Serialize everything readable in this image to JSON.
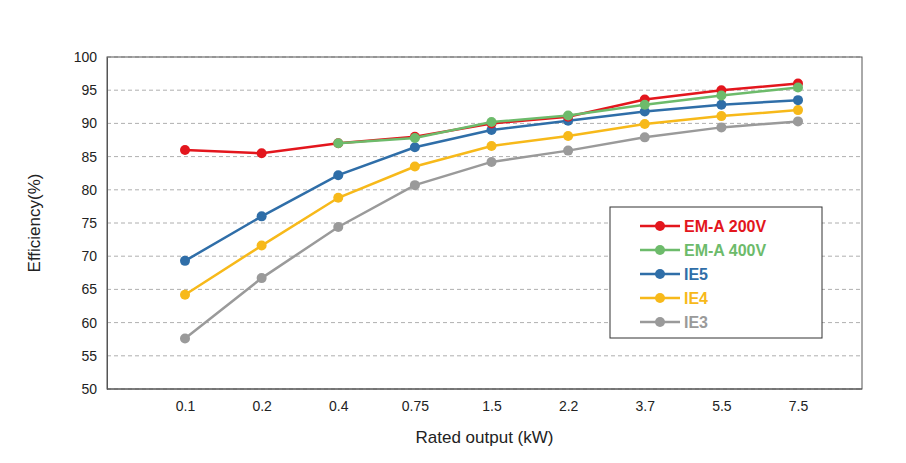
{
  "chart_data": {
    "type": "line",
    "x_label": "Rated output (kW)",
    "y_label": "Efficiency(%)",
    "categories": [
      "0.1",
      "0.2",
      "0.4",
      "0.75",
      "1.5",
      "2.2",
      "3.7",
      "5.5",
      "7.5"
    ],
    "series": [
      {
        "name": "EM-A 200V",
        "color": "#e3161d",
        "marker": "circle",
        "values": [
          86,
          85.5,
          87,
          88,
          90,
          91,
          93.6,
          95,
          96
        ]
      },
      {
        "name": "EM-A 400V",
        "color": "#6dbb6b",
        "marker": "circle",
        "values": [
          null,
          null,
          87,
          87.8,
          90.2,
          91.2,
          92.8,
          94.2,
          95.4
        ]
      },
      {
        "name": "IE5",
        "color": "#2f6ea8",
        "marker": "circle",
        "values": [
          69.3,
          76,
          82.2,
          86.4,
          89,
          90.4,
          91.8,
          92.8,
          93.5
        ]
      },
      {
        "name": "IE4",
        "color": "#f7b91a",
        "marker": "circle",
        "values": [
          64.2,
          71.6,
          78.8,
          83.5,
          86.6,
          88.1,
          89.9,
          91.1,
          92
        ]
      },
      {
        "name": "IE3",
        "color": "#9a9a9a",
        "marker": "circle",
        "values": [
          57.6,
          66.7,
          74.4,
          80.7,
          84.2,
          85.9,
          87.9,
          89.4,
          90.3
        ]
      }
    ],
    "ylim": [
      50,
      100
    ],
    "yticks": [
      50,
      55,
      60,
      65,
      70,
      75,
      80,
      85,
      90,
      95,
      100
    ],
    "grid": true,
    "legend": "right"
  }
}
